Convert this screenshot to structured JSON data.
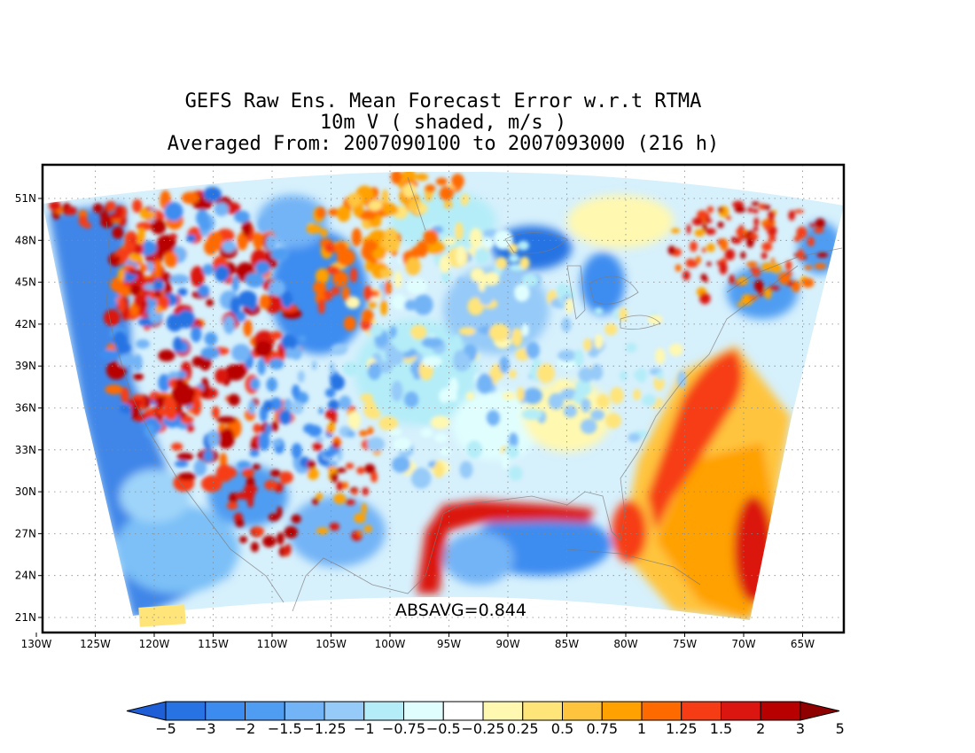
{
  "title": {
    "line1": "GEFS Raw Ens. Mean Forecast Error w.r.t RTMA",
    "line2": "10m V ( shaded, m/s )",
    "line3": "Averaged From: 2007090100 to 2007093000 (216 h)"
  },
  "annotation": "ABSAVG=0.844",
  "map": {
    "projection": "lambert-conformal",
    "lon_range": [
      -130,
      -62
    ],
    "lat_range": [
      20,
      52
    ],
    "grid": true,
    "x_ticks": [
      "130W",
      "125W",
      "120W",
      "115W",
      "110W",
      "105W",
      "100W",
      "95W",
      "90W",
      "85W",
      "80W",
      "75W",
      "70W",
      "65W"
    ],
    "y_ticks": [
      "21N",
      "24N",
      "27N",
      "30N",
      "33N",
      "36N",
      "39N",
      "42N",
      "45N",
      "48N",
      "51N"
    ]
  },
  "colorbar": {
    "labels": [
      "-5",
      "-3",
      "-2",
      "-1.5",
      "-1.25",
      "-1",
      "-0.75",
      "-0.5",
      "-0.25",
      "0.25",
      "0.5",
      "0.75",
      "1",
      "1.25",
      "1.5",
      "2",
      "3",
      "5"
    ],
    "colors": [
      "#1e5fd8",
      "#2873e3",
      "#3c8cf0",
      "#4f9df2",
      "#73b4f6",
      "#96caf8",
      "#b4edf8",
      "#e0fefe",
      "#ffffff",
      "#fff8b0",
      "#ffe47a",
      "#ffc43e",
      "#ffa100",
      "#ff6a00",
      "#f63c14",
      "#db1510",
      "#b80000",
      "#8f0000"
    ]
  }
}
